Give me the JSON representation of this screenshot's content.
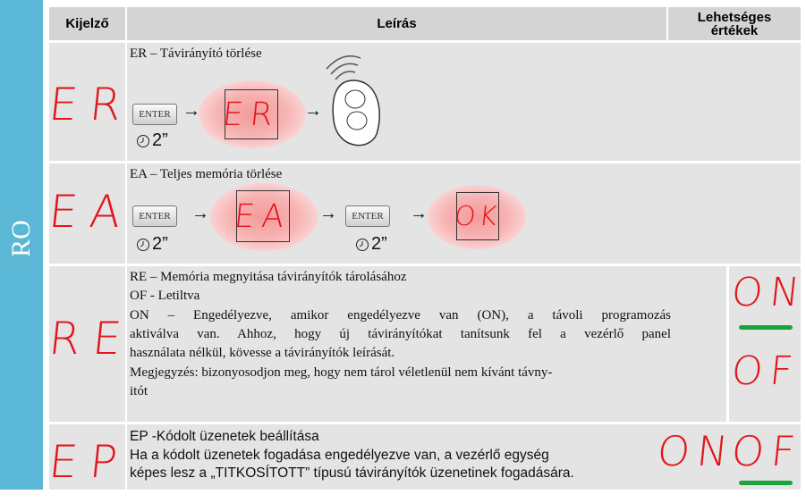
{
  "side_label": "RO",
  "header": {
    "display": "Kijelző",
    "description": "Leírás",
    "values": "Lehetséges értékek"
  },
  "arrow": "→",
  "rows": [
    {
      "display": "ER",
      "title": "ER – Távirányító törlése",
      "button": "ENTER",
      "time": "2”",
      "result": "ER"
    },
    {
      "display": "EA",
      "title": "EA – Teljes memória törlése",
      "button": "ENTER",
      "time": "2”",
      "result": "EA",
      "button2": "ENTER",
      "time2": "2”",
      "result2": "OK"
    },
    {
      "display": "RE",
      "lines": [
        "RE – Memória megnyitása távirányítók tárolásához",
        "OF - Letiltva",
        "ON – Engedélyezve, amikor engedélyezve van (ON), a távoli programozás",
        "aktiválva van. Ahhoz, hogy új távirányítókat tanítsunk fel a vezérlő panel",
        "használata nélkül, kövesse a távirányítók leírását.",
        "Megjegyzés: bizonyosodjon meg, hogy nem tárol véletlenül nem kívánt távny-",
        "itót"
      ],
      "values": [
        "ON",
        "OF"
      ]
    },
    {
      "display": "EP",
      "title": "EP -Kódolt üzenetek beállítása",
      "lines": [
        "Ha a kódolt üzenetek fogadása engedélyezve van, a vezérlő egység",
        "képes lesz a „TITKOSÍTOTT” típusú távirányítók üzenetinek fogadására."
      ],
      "values": [
        "ON",
        "OF"
      ]
    }
  ]
}
